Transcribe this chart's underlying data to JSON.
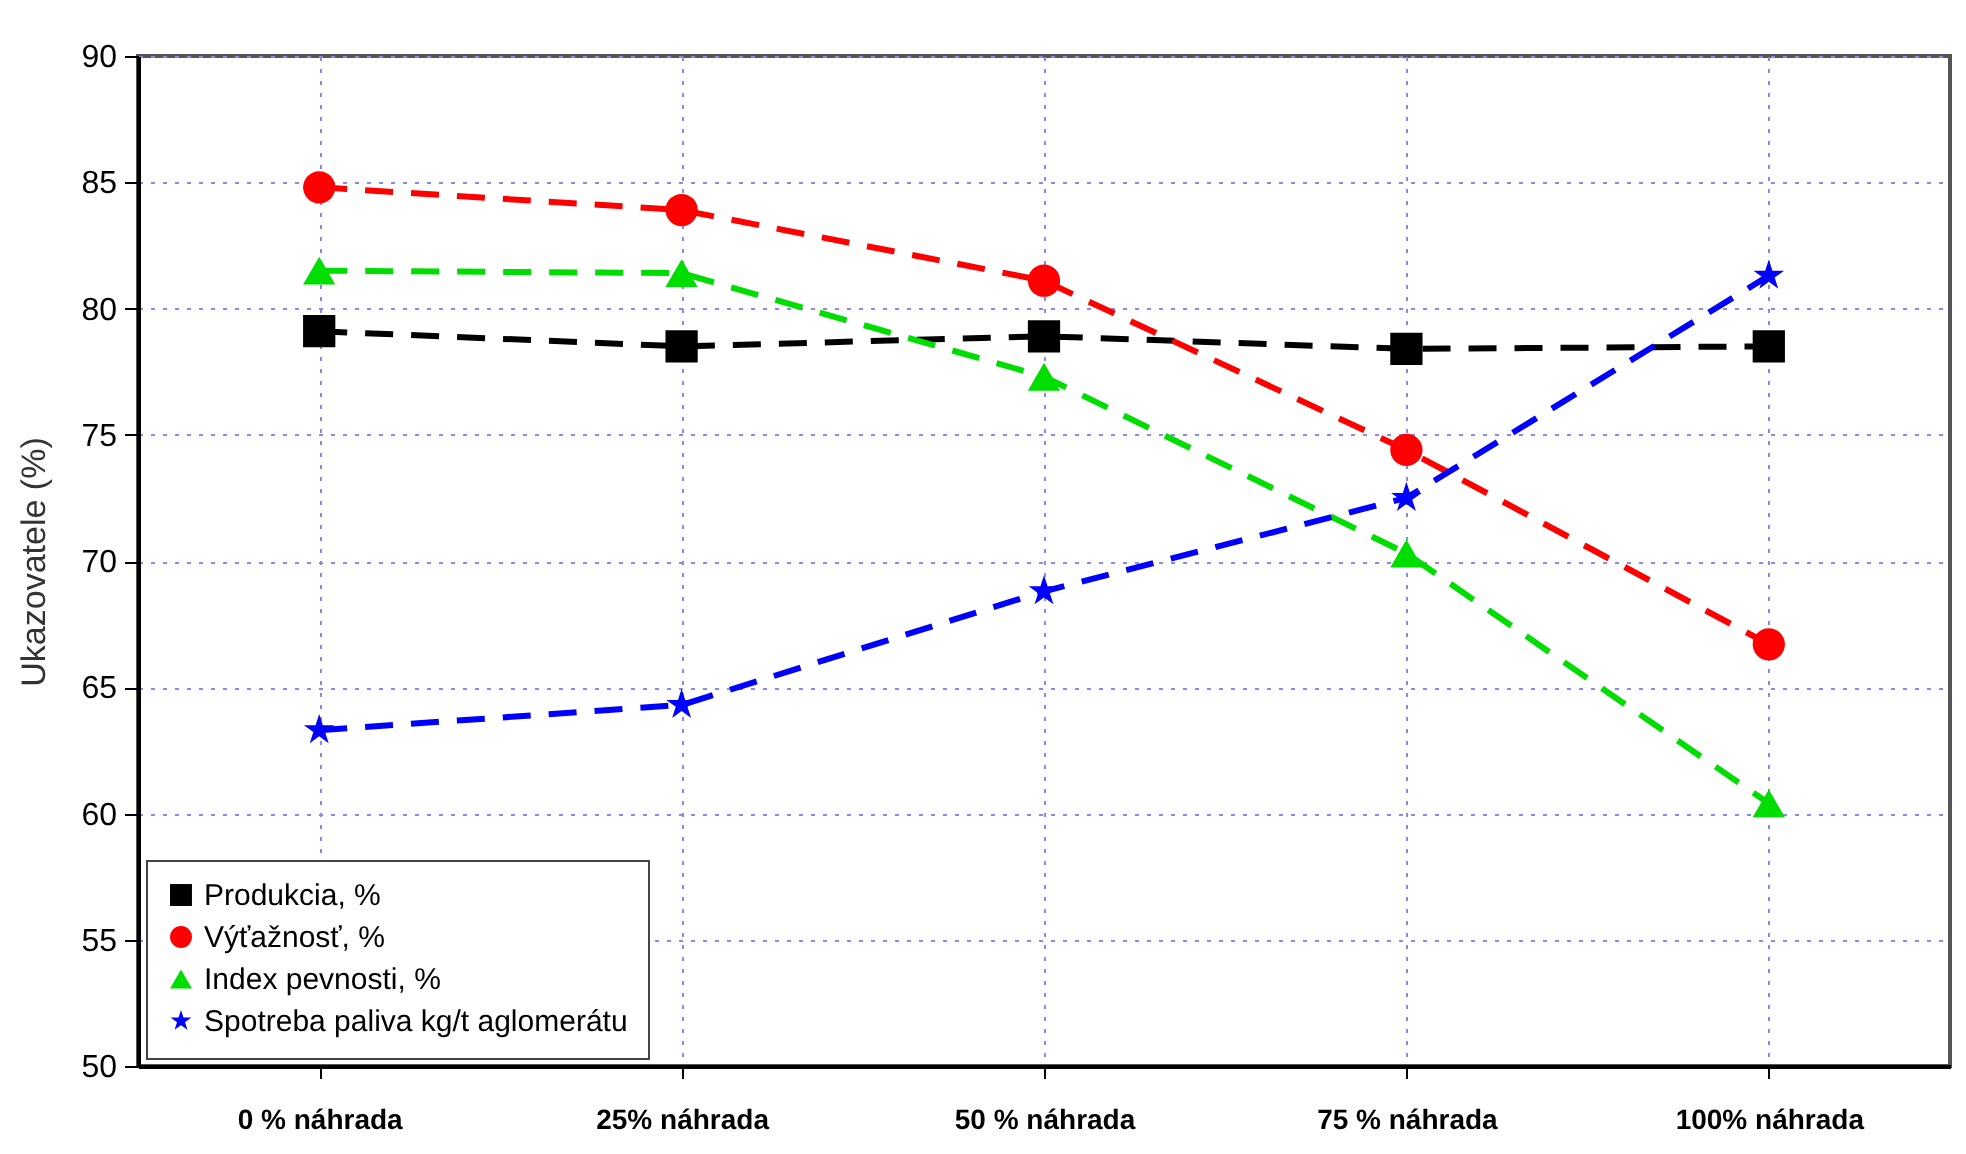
{
  "chart_data": {
    "type": "line",
    "ylabel": "Ukazovatele (%)",
    "categories": [
      "0 % náhrada",
      "25% náhrada",
      "50 % náhrada",
      "75 % náhrada",
      "100% náhrada"
    ],
    "series": [
      {
        "name": "Produkcia, %",
        "color": "#000000",
        "marker": "square",
        "values": [
          79.1,
          78.5,
          78.9,
          78.4,
          78.5
        ]
      },
      {
        "name": "Výťažnosť, %",
        "color": "#ff0000",
        "marker": "circle",
        "values": [
          84.8,
          83.9,
          81.1,
          74.4,
          66.7
        ]
      },
      {
        "name": "Index pevnosti, %",
        "color": "#00dd00",
        "marker": "triangle",
        "values": [
          81.5,
          81.4,
          77.3,
          70.3,
          60.4
        ]
      },
      {
        "name": "Spotreba paliva kg/t aglomerátu",
        "color": "#0000ff",
        "marker": "star",
        "values": [
          63.3,
          64.3,
          68.8,
          72.5,
          81.3
        ]
      }
    ],
    "ylim": [
      50,
      90
    ],
    "yticks": [
      50,
      55,
      60,
      65,
      70,
      75,
      80,
      85,
      90
    ],
    "grid": true,
    "legend": "bottom left",
    "line_style": "dashed"
  }
}
